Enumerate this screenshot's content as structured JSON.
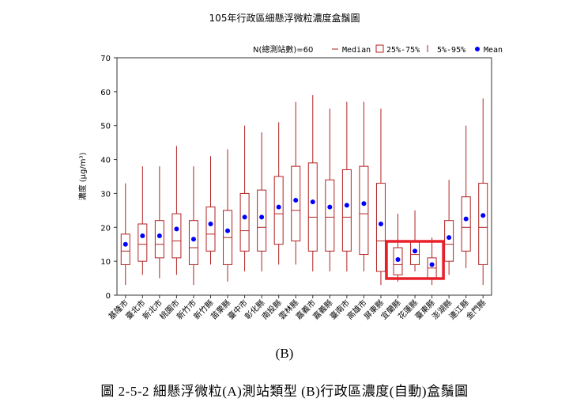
{
  "chart_data": {
    "type": "boxplot",
    "title": "105年行政區細懸浮微粒濃度盒鬚圖",
    "ylabel": "濃度 (μg/m³)",
    "ylim": [
      0,
      70
    ],
    "yticks": [
      0,
      10,
      20,
      30,
      40,
      50,
      60,
      70
    ],
    "legend": {
      "placement": "top-right",
      "note": "N(總測站數)=60",
      "items": [
        {
          "symbol": "median-line",
          "label": "Median"
        },
        {
          "symbol": "box",
          "label": "25%-75%"
        },
        {
          "symbol": "whisker",
          "label": "5%-95%"
        },
        {
          "symbol": "mean-dot",
          "label": "Mean"
        }
      ]
    },
    "colors": {
      "box": "#b22222",
      "mean": "#0000ff",
      "highlight": "#e8202a",
      "axis": "#333333"
    },
    "categories": [
      "基隆市",
      "臺北市",
      "新北市",
      "桃園市",
      "新竹市",
      "新竹縣",
      "苗栗縣",
      "臺中市",
      "彰化縣",
      "南投縣",
      "雲林縣",
      "嘉義市",
      "嘉義縣",
      "臺南市",
      "高雄市",
      "屏東縣",
      "宜蘭縣",
      "花蓮縣",
      "臺東縣",
      "澎湖縣",
      "連江縣",
      "金門縣"
    ],
    "series": [
      {
        "p5": 3,
        "q1": 9,
        "median": 13,
        "q3": 18,
        "p95": 33,
        "mean": 15
      },
      {
        "p5": 6,
        "q1": 10,
        "median": 15,
        "q3": 21,
        "p95": 38,
        "mean": 17.5
      },
      {
        "p5": 5,
        "q1": 11,
        "median": 15,
        "q3": 22,
        "p95": 38,
        "mean": 17.5
      },
      {
        "p5": 6,
        "q1": 11,
        "median": 16,
        "q3": 24,
        "p95": 44,
        "mean": 19.5
      },
      {
        "p5": 3,
        "q1": 9,
        "median": 14,
        "q3": 22,
        "p95": 38,
        "mean": 16.5
      },
      {
        "p5": 9,
        "q1": 13,
        "median": 18,
        "q3": 26,
        "p95": 41,
        "mean": 21
      },
      {
        "p5": 4,
        "q1": 9,
        "median": 17,
        "q3": 25,
        "p95": 43,
        "mean": 19
      },
      {
        "p5": 7,
        "q1": 13,
        "median": 19,
        "q3": 30,
        "p95": 50,
        "mean": 23
      },
      {
        "p5": 7,
        "q1": 13,
        "median": 20,
        "q3": 31,
        "p95": 48,
        "mean": 23
      },
      {
        "p5": 9,
        "q1": 15,
        "median": 24,
        "q3": 35,
        "p95": 51,
        "mean": 26
      },
      {
        "p5": 9,
        "q1": 16,
        "median": 25,
        "q3": 38,
        "p95": 57,
        "mean": 28
      },
      {
        "p5": 7,
        "q1": 13,
        "median": 23,
        "q3": 39,
        "p95": 59,
        "mean": 27.5
      },
      {
        "p5": 7,
        "q1": 13,
        "median": 23,
        "q3": 34,
        "p95": 55,
        "mean": 26
      },
      {
        "p5": 7,
        "q1": 13,
        "median": 23,
        "q3": 37,
        "p95": 57,
        "mean": 26.5
      },
      {
        "p5": 7,
        "q1": 12,
        "median": 24,
        "q3": 38,
        "p95": 57,
        "mean": 27
      },
      {
        "p5": 3,
        "q1": 7,
        "median": 16,
        "q3": 33,
        "p95": 55,
        "mean": 21
      },
      {
        "p5": 4,
        "q1": 6,
        "median": 9,
        "q3": 14,
        "p95": 24,
        "mean": 10.5
      },
      {
        "p5": 7,
        "q1": 9,
        "median": 12,
        "q3": 16,
        "p95": 25,
        "mean": 13
      },
      {
        "p5": 3,
        "q1": 5,
        "median": 8,
        "q3": 11,
        "p95": 17,
        "mean": 9
      },
      {
        "p5": 6,
        "q1": 10,
        "median": 15,
        "q3": 22,
        "p95": 34,
        "mean": 17
      },
      {
        "p5": 8,
        "q1": 13,
        "median": 20,
        "q3": 29,
        "p95": 50,
        "mean": 22.5
      },
      {
        "p5": 3,
        "q1": 9,
        "median": 20,
        "q3": 33,
        "p95": 58,
        "mean": 23.5
      }
    ],
    "highlight_categories": [
      "宜蘭縣",
      "花蓮縣",
      "臺東縣"
    ]
  },
  "panel_label": "(B)",
  "figure_caption": "圖 2-5-2  細懸浮微粒(A)測站類型  (B)行政區濃度(自動)盒鬚圖"
}
